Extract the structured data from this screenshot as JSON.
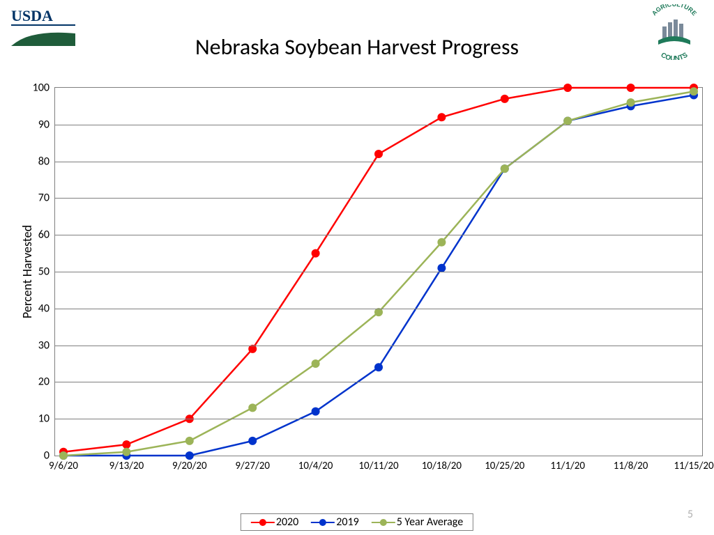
{
  "title": "Nebraska Soybean Harvest Progress",
  "page_number": "5",
  "logos": {
    "left_name": "usda-logo",
    "right_name": "agriculture-counts-logo"
  },
  "chart": {
    "type": "line",
    "ylabel": "Percent Harvested",
    "ylim": [
      0,
      100
    ],
    "ytick_step": 10,
    "x_categories": [
      "9/6/20",
      "9/13/20",
      "9/20/20",
      "9/27/20",
      "10/4/20",
      "10/11/20",
      "10/18/20",
      "10/25/20",
      "11/1/20",
      "11/8/20",
      "11/15/20"
    ],
    "grid_color": "#7f7f7f",
    "background_color": "#ffffff",
    "border_color": "#7f7f7f",
    "line_width": 2.5,
    "marker_size": 6,
    "series": [
      {
        "name": "2020",
        "color": "#ff0000",
        "values": [
          1,
          3,
          10,
          29,
          55,
          82,
          92,
          97,
          100,
          100,
          100
        ]
      },
      {
        "name": "2019",
        "color": "#0033cc",
        "values": [
          0,
          0,
          0,
          4,
          12,
          24,
          51,
          78,
          91,
          95,
          98
        ]
      },
      {
        "name": "5 Year Average",
        "color": "#9cb458",
        "values": [
          0,
          1,
          4,
          13,
          25,
          39,
          58,
          78,
          91,
          96,
          99
        ]
      }
    ],
    "title_fontsize": 32,
    "label_fontsize": 18,
    "tick_fontsize": 16
  }
}
